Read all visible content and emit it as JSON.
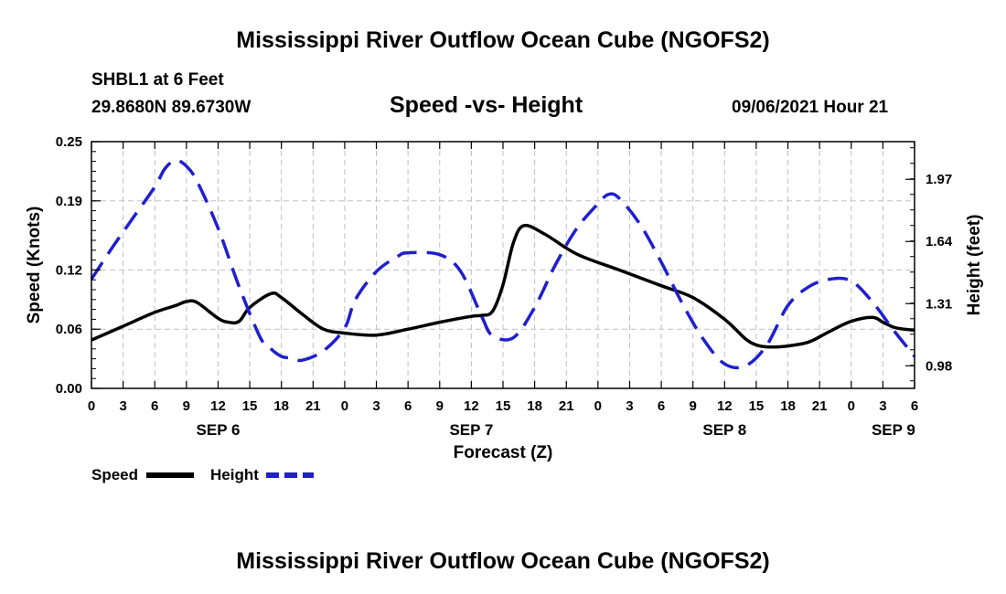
{
  "page_title_top": "Mississippi River Outflow Ocean Cube (NGOFS2)",
  "page_title_bottom": "Mississippi River Outflow Ocean Cube (NGOFS2)",
  "station": "SHBL1 at 6 Feet",
  "coords": "29.8680N  89.6730W",
  "date_label": "09/06/2021 Hour 21",
  "chart_data": {
    "type": "line",
    "title": "Speed -vs- Height",
    "xlabel": "Forecast (Z)",
    "ylabel": "Speed (Knots)",
    "y2label": "Height (feet)",
    "x_hours_range": [
      0,
      78
    ],
    "x_tick_hours": [
      0,
      3,
      6,
      9,
      12,
      15,
      18,
      21,
      24,
      27,
      30,
      33,
      36,
      39,
      42,
      45,
      48,
      51,
      54,
      57,
      60,
      63,
      66,
      69,
      72,
      75,
      78
    ],
    "x_tick_labels": [
      "0",
      "3",
      "6",
      "9",
      "12",
      "15",
      "18",
      "21",
      "0",
      "3",
      "6",
      "9",
      "12",
      "15",
      "18",
      "21",
      "0",
      "3",
      "6",
      "9",
      "12",
      "15",
      "18",
      "21",
      "0",
      "3",
      "6"
    ],
    "date_labels": [
      {
        "hour": 12,
        "label": "SEP 6"
      },
      {
        "hour": 36,
        "label": "SEP 7"
      },
      {
        "hour": 60,
        "label": "SEP 8"
      },
      {
        "hour": 76,
        "label": "SEP 9"
      }
    ],
    "ylim": [
      0,
      0.25
    ],
    "y_ticks": [
      0.0,
      0.06,
      0.12,
      0.19,
      0.25
    ],
    "y_tick_labels": [
      "0.00",
      "0.06",
      "0.12",
      "0.19",
      "0.25"
    ],
    "y2lim": [
      0.86,
      2.17
    ],
    "y2_ticks": [
      0.98,
      1.31,
      1.64,
      1.97
    ],
    "y2_tick_labels": [
      "0.98",
      "1.31",
      "1.64",
      "1.97"
    ],
    "grid": true,
    "series": [
      {
        "name": "Speed",
        "axis": "left",
        "color": "#000000",
        "dash": "solid",
        "x": [
          0,
          3,
          6,
          8,
          9,
          10,
          12,
          13,
          14,
          15,
          17,
          18,
          20,
          22,
          24,
          27,
          30,
          33,
          36,
          37,
          38,
          39,
          40,
          41,
          43,
          46,
          50,
          54,
          57,
          60,
          62,
          63,
          64,
          65,
          66,
          68,
          70,
          72,
          74,
          75,
          76,
          77,
          78
        ],
        "y": [
          0.049,
          0.063,
          0.077,
          0.084,
          0.088,
          0.087,
          0.071,
          0.067,
          0.068,
          0.082,
          0.096,
          0.092,
          0.075,
          0.06,
          0.056,
          0.054,
          0.06,
          0.067,
          0.073,
          0.074,
          0.078,
          0.105,
          0.148,
          0.165,
          0.156,
          0.136,
          0.12,
          0.104,
          0.092,
          0.07,
          0.05,
          0.044,
          0.042,
          0.042,
          0.043,
          0.047,
          0.058,
          0.068,
          0.072,
          0.067,
          0.062,
          0.06,
          0.059
        ]
      },
      {
        "name": "Height",
        "axis": "right",
        "color": "#1f1fd0",
        "dash": "dashed",
        "x": [
          0,
          2,
          4,
          6,
          7,
          8,
          9,
          10,
          12,
          14,
          16,
          17,
          18,
          19,
          20,
          22,
          24,
          25,
          27,
          29,
          30,
          33,
          35,
          37,
          38,
          40,
          42,
          44,
          46,
          48,
          49,
          50,
          52,
          54,
          56,
          58,
          60,
          62,
          64,
          66,
          68,
          70,
          72,
          74,
          76,
          78
        ],
        "y": [
          1.44,
          1.61,
          1.77,
          1.93,
          2.03,
          2.07,
          2.04,
          1.96,
          1.71,
          1.4,
          1.13,
          1.07,
          1.03,
          1.02,
          1.01,
          1.06,
          1.18,
          1.33,
          1.48,
          1.56,
          1.58,
          1.57,
          1.48,
          1.24,
          1.14,
          1.13,
          1.29,
          1.52,
          1.71,
          1.84,
          1.89,
          1.87,
          1.73,
          1.53,
          1.31,
          1.12,
          0.99,
          0.98,
          1.09,
          1.3,
          1.4,
          1.44,
          1.43,
          1.32,
          1.17,
          1.03
        ]
      }
    ],
    "legend": [
      {
        "label": "Speed",
        "dash": "solid",
        "color": "#000000"
      },
      {
        "label": "Height",
        "dash": "dashed",
        "color": "#1f1fd0"
      }
    ]
  }
}
